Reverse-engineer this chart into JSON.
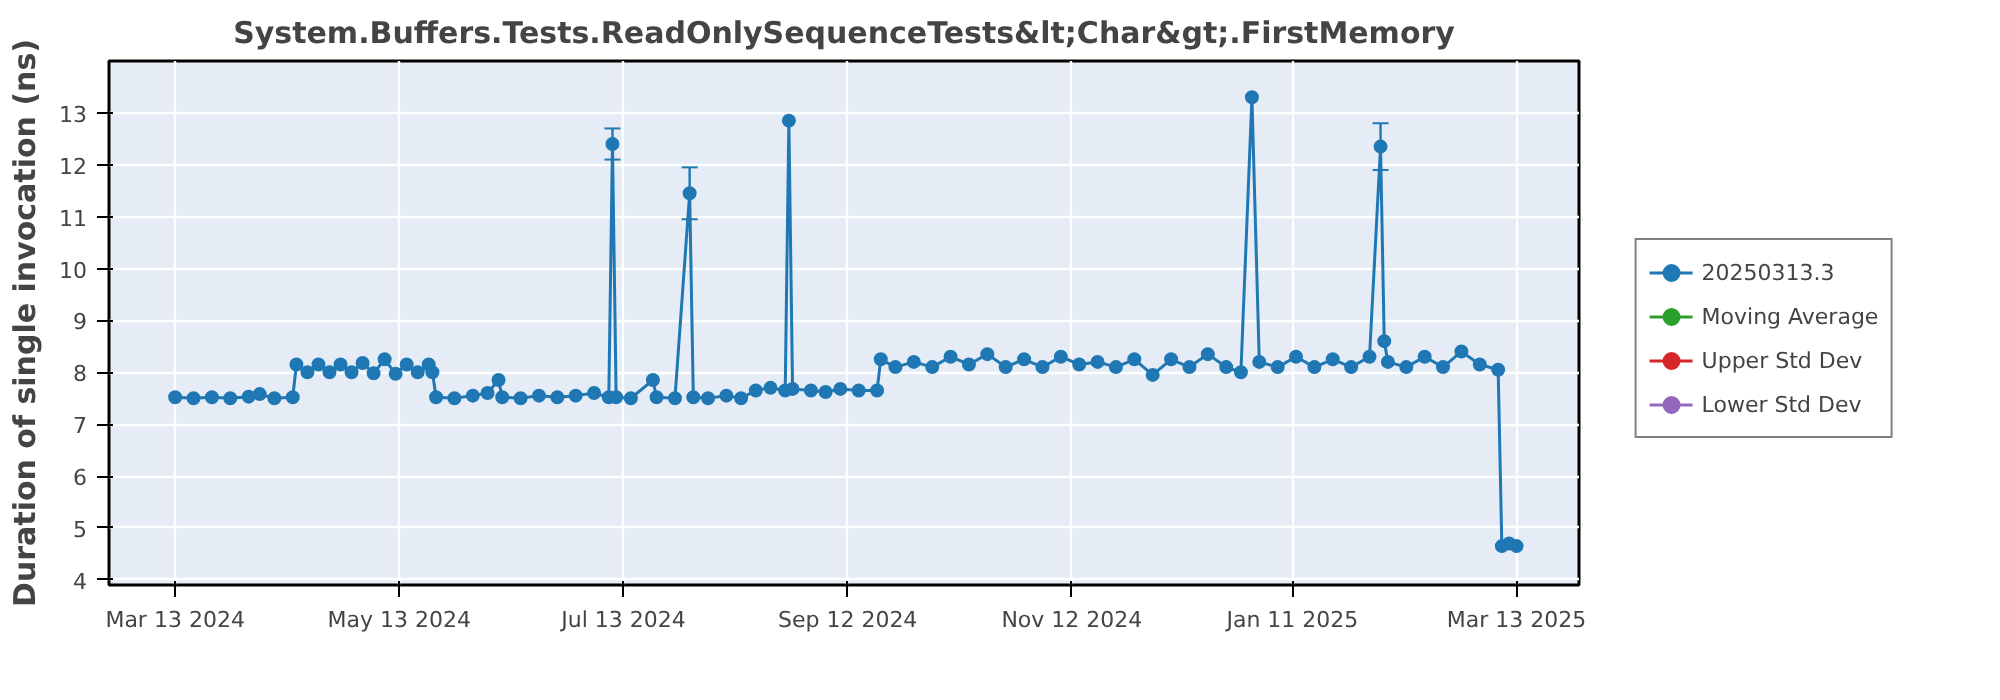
{
  "chart_data": {
    "type": "line",
    "title": "System.Buffers.Tests.ReadOnlySequenceTests&lt;Char&gt;.FirstMemory",
    "ylabel": "Duration of single invocation (ns)",
    "xlim": [
      "2024-02-24",
      "2025-03-30"
    ],
    "ylim": [
      3.9,
      14
    ],
    "xticks": [
      {
        "value": "2024-03-13",
        "label": "Mar 13 2024"
      },
      {
        "value": "2024-05-13",
        "label": "May 13 2024"
      },
      {
        "value": "2024-07-13",
        "label": "Jul 13 2024"
      },
      {
        "value": "2024-09-12",
        "label": "Sep 12 2024"
      },
      {
        "value": "2024-11-12",
        "label": "Nov 12 2024"
      },
      {
        "value": "2025-01-11",
        "label": "Jan 11 2025"
      },
      {
        "value": "2025-03-13",
        "label": "Mar 13 2025"
      }
    ],
    "yticks": [
      4,
      5,
      6,
      7,
      8,
      9,
      10,
      11,
      12,
      13
    ],
    "grid": true,
    "legend": "right",
    "marker": "circle",
    "line_style": "solid",
    "series": [
      {
        "name": "20250313.3",
        "color": "#1f77b4",
        "x": [
          "2024-03-13",
          "2024-03-18",
          "2024-03-23",
          "2024-03-28",
          "2024-04-02",
          "2024-04-05",
          "2024-04-09",
          "2024-04-14",
          "2024-04-15",
          "2024-04-18",
          "2024-04-21",
          "2024-04-24",
          "2024-04-27",
          "2024-04-30",
          "2024-05-03",
          "2024-05-06",
          "2024-05-09",
          "2024-05-12",
          "2024-05-15",
          "2024-05-18",
          "2024-05-21",
          "2024-05-22",
          "2024-05-23",
          "2024-05-28",
          "2024-06-02",
          "2024-06-06",
          "2024-06-09",
          "2024-06-10",
          "2024-06-15",
          "2024-06-20",
          "2024-06-25",
          "2024-06-30",
          "2024-07-05",
          "2024-07-09",
          "2024-07-10",
          "2024-07-11",
          "2024-07-15",
          "2024-07-21",
          "2024-07-22",
          "2024-07-27",
          "2024-07-31",
          "2024-08-01",
          "2024-08-05",
          "2024-08-10",
          "2024-08-14",
          "2024-08-18",
          "2024-08-22",
          "2024-08-26",
          "2024-08-27",
          "2024-08-28",
          "2024-09-02",
          "2024-09-06",
          "2024-09-10",
          "2024-09-15",
          "2024-09-20",
          "2024-09-21",
          "2024-09-25",
          "2024-09-30",
          "2024-10-05",
          "2024-10-10",
          "2024-10-15",
          "2024-10-20",
          "2024-10-25",
          "2024-10-30",
          "2024-11-04",
          "2024-11-09",
          "2024-11-14",
          "2024-11-19",
          "2024-11-24",
          "2024-11-29",
          "2024-12-04",
          "2024-12-09",
          "2024-12-14",
          "2024-12-19",
          "2024-12-24",
          "2024-12-28",
          "2024-12-31",
          "2025-01-02",
          "2025-01-07",
          "2025-01-12",
          "2025-01-17",
          "2025-01-22",
          "2025-01-27",
          "2025-02-01",
          "2025-02-04",
          "2025-02-05",
          "2025-02-06",
          "2025-02-11",
          "2025-02-16",
          "2025-02-21",
          "2025-02-26",
          "2025-03-03",
          "2025-03-08",
          "2025-03-09",
          "2025-03-11",
          "2025-03-13"
        ],
        "values": [
          7.52,
          7.5,
          7.52,
          7.5,
          7.53,
          7.58,
          7.5,
          7.52,
          8.15,
          8.0,
          8.15,
          8.0,
          8.15,
          8.0,
          8.18,
          7.98,
          8.25,
          7.97,
          8.15,
          8.0,
          8.15,
          8.0,
          7.52,
          7.5,
          7.55,
          7.6,
          7.85,
          7.52,
          7.5,
          7.55,
          7.52,
          7.55,
          7.6,
          7.52,
          12.4,
          7.52,
          7.5,
          7.85,
          7.52,
          7.5,
          11.45,
          7.52,
          7.5,
          7.55,
          7.5,
          7.65,
          7.7,
          7.65,
          12.85,
          7.68,
          7.65,
          7.62,
          7.68,
          7.65,
          7.65,
          8.25,
          8.1,
          8.2,
          8.1,
          8.3,
          8.15,
          8.35,
          8.1,
          8.25,
          8.1,
          8.3,
          8.15,
          8.2,
          8.1,
          8.25,
          7.95,
          8.25,
          8.1,
          8.35,
          8.1,
          8.0,
          13.3,
          8.2,
          8.1,
          8.3,
          8.1,
          8.25,
          8.1,
          8.3,
          12.35,
          8.6,
          8.2,
          8.1,
          8.3,
          8.1,
          8.4,
          8.15,
          8.05,
          4.65,
          4.7,
          4.65
        ],
        "errors": [
          null,
          null,
          null,
          null,
          null,
          null,
          null,
          null,
          null,
          null,
          null,
          null,
          null,
          null,
          null,
          null,
          null,
          null,
          null,
          null,
          null,
          null,
          null,
          null,
          null,
          null,
          null,
          null,
          null,
          null,
          null,
          null,
          null,
          null,
          [
            12.1,
            12.7
          ],
          null,
          null,
          null,
          null,
          null,
          [
            10.95,
            11.95
          ],
          null,
          null,
          null,
          null,
          null,
          null,
          null,
          null,
          null,
          null,
          null,
          null,
          null,
          null,
          null,
          null,
          null,
          null,
          null,
          null,
          null,
          null,
          null,
          null,
          null,
          null,
          null,
          null,
          null,
          null,
          null,
          null,
          null,
          null,
          null,
          null,
          null,
          null,
          null,
          null,
          null,
          null,
          null,
          [
            11.9,
            12.8
          ],
          null,
          null,
          null,
          null,
          null,
          null,
          null,
          null,
          null,
          null,
          null
        ]
      },
      {
        "name": "Moving Average",
        "color": "#2ca02c"
      },
      {
        "name": "Upper Std Dev",
        "color": "#d62728"
      },
      {
        "name": "Lower Std Dev",
        "color": "#9467bd"
      }
    ]
  }
}
